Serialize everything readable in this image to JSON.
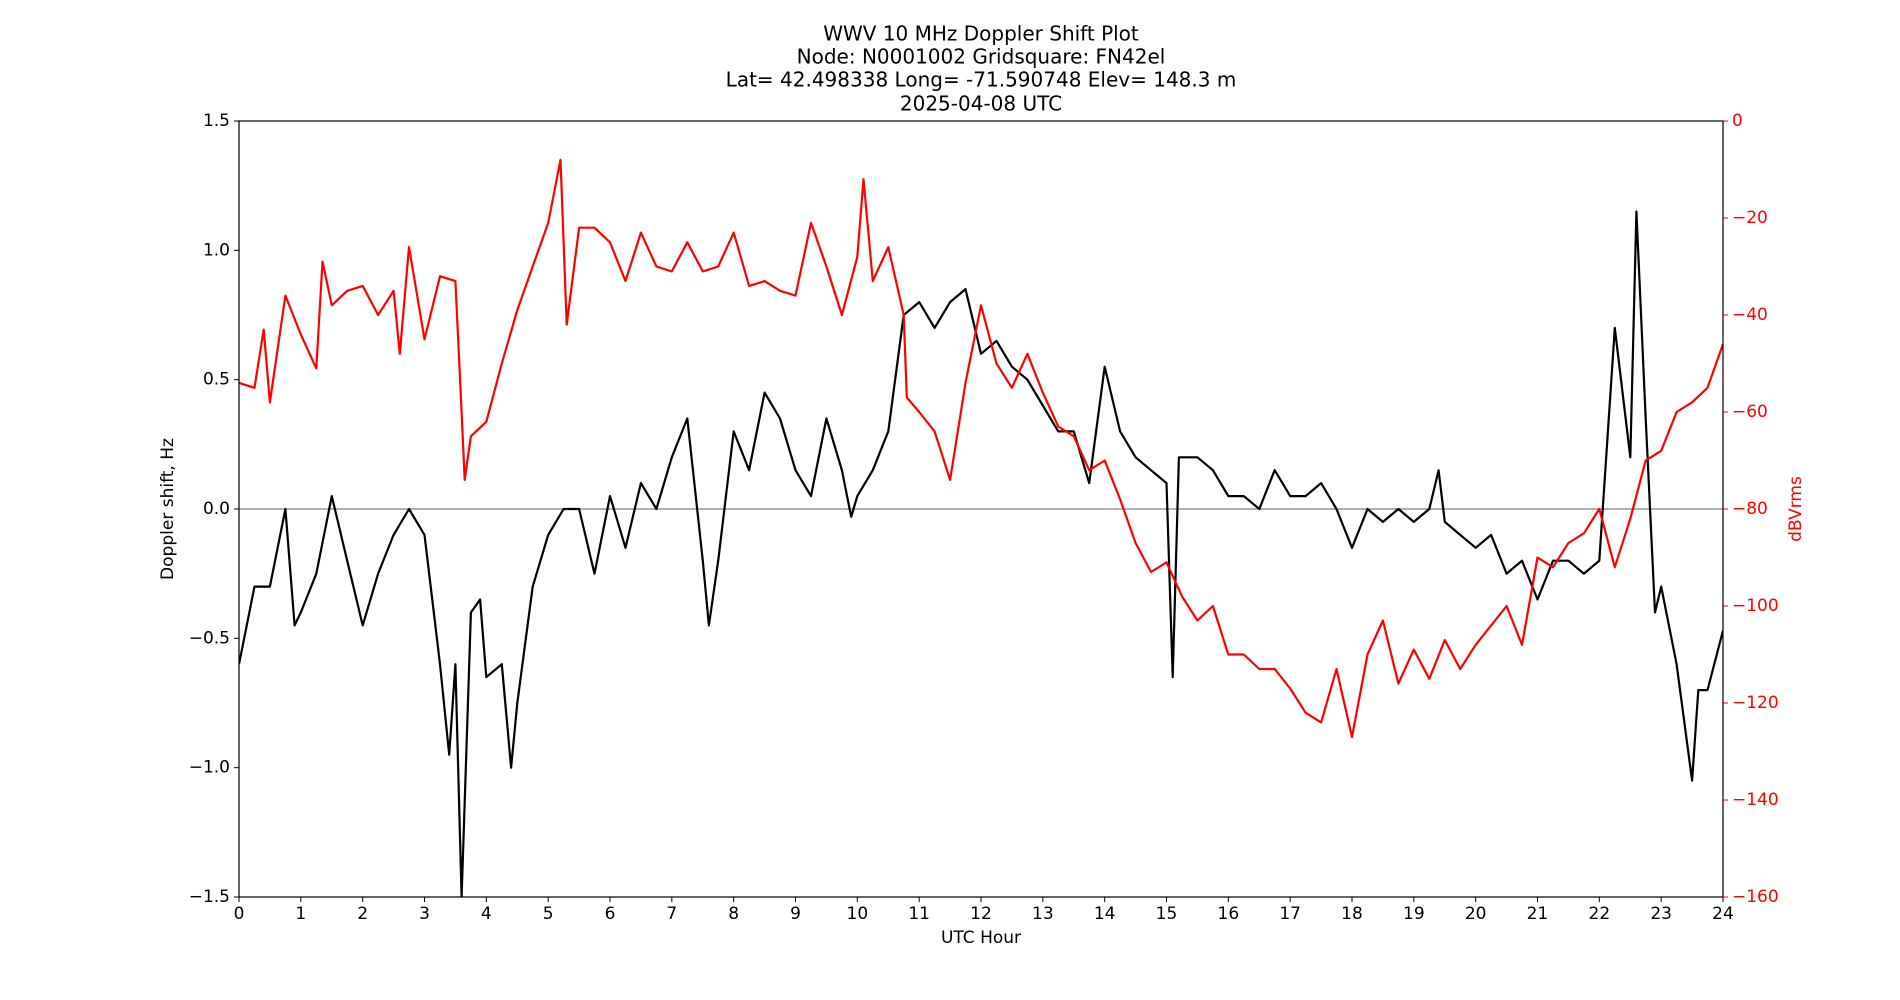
{
  "chart_data": {
    "type": "line",
    "title": [
      "WWV 10 MHz Doppler Shift Plot",
      "Node:  N0001002     Gridsquare:  FN42el",
      "Lat= 42.498338    Long= -71.590748    Elev= 148.3 m",
      "2025-04-08  UTC"
    ],
    "x_label": "UTC Hour",
    "y_label": "Doppler shift, Hz",
    "y2_label": "dBVrms",
    "xlim": [
      0,
      24
    ],
    "xticks": [
      0,
      1,
      2,
      3,
      4,
      5,
      6,
      7,
      8,
      9,
      10,
      11,
      12,
      13,
      14,
      15,
      16,
      17,
      18,
      19,
      20,
      21,
      22,
      23,
      24
    ],
    "ylim": [
      -1.5,
      1.5
    ],
    "yticks": [
      {
        "value": -1.5,
        "label": "−1.5"
      },
      {
        "value": -1.0,
        "label": "−1.0"
      },
      {
        "value": -0.5,
        "label": "−0.5"
      },
      {
        "value": 0.0,
        "label": "0.0"
      },
      {
        "value": 0.5,
        "label": "0.5"
      },
      {
        "value": 1.0,
        "label": "1.0"
      },
      {
        "value": 1.5,
        "label": "1.5"
      }
    ],
    "y2lim": [
      -160,
      0
    ],
    "y2ticks": [
      {
        "value": -160,
        "label": "−160"
      },
      {
        "value": -140,
        "label": "−140"
      },
      {
        "value": -120,
        "label": "−120"
      },
      {
        "value": -100,
        "label": "−100"
      },
      {
        "value": -80,
        "label": "−80"
      },
      {
        "value": -60,
        "label": "−60"
      },
      {
        "value": -40,
        "label": "−40"
      },
      {
        "value": -20,
        "label": "−20"
      },
      0
    ],
    "y2_color": "#ff0000",
    "reference_line": 0,
    "reference_color": "#808080",
    "series": [
      {
        "name": "Doppler shift",
        "color": "#000000",
        "axis": "y",
        "x": [
          0,
          0.25,
          0.5,
          0.75,
          0.9,
          1.0,
          1.25,
          1.5,
          1.75,
          2.0,
          2.25,
          2.5,
          2.75,
          3.0,
          3.25,
          3.4,
          3.5,
          3.6,
          3.75,
          3.9,
          4.0,
          4.25,
          4.4,
          4.5,
          4.75,
          5.0,
          5.25,
          5.5,
          5.75,
          6.0,
          6.25,
          6.5,
          6.75,
          7.0,
          7.25,
          7.5,
          7.6,
          7.75,
          8.0,
          8.25,
          8.5,
          8.75,
          9.0,
          9.25,
          9.5,
          9.75,
          9.9,
          10.0,
          10.25,
          10.5,
          10.75,
          11.0,
          11.25,
          11.5,
          11.75,
          12.0,
          12.25,
          12.5,
          12.75,
          13.0,
          13.25,
          13.5,
          13.75,
          14.0,
          14.25,
          14.5,
          14.75,
          15.0,
          15.1,
          15.2,
          15.5,
          15.75,
          16.0,
          16.25,
          16.5,
          16.75,
          17.0,
          17.25,
          17.5,
          17.75,
          18.0,
          18.25,
          18.5,
          18.75,
          19.0,
          19.25,
          19.4,
          19.5,
          19.75,
          20.0,
          20.25,
          20.5,
          20.75,
          21.0,
          21.25,
          21.5,
          21.75,
          22.0,
          22.25,
          22.5,
          22.6,
          22.75,
          22.9,
          23.0,
          23.25,
          23.5,
          23.6,
          23.75,
          24.0
        ],
        "values": [
          -0.6,
          -0.3,
          -0.3,
          0.0,
          -0.45,
          -0.4,
          -0.25,
          0.05,
          -0.2,
          -0.45,
          -0.25,
          -0.1,
          0.0,
          -0.1,
          -0.6,
          -0.95,
          -0.6,
          -1.5,
          -0.4,
          -0.35,
          -0.65,
          -0.6,
          -1.0,
          -0.75,
          -0.3,
          -0.1,
          0.0,
          0.0,
          -0.25,
          0.05,
          -0.15,
          0.1,
          0.0,
          0.2,
          0.35,
          -0.2,
          -0.45,
          -0.2,
          0.3,
          0.15,
          0.45,
          0.35,
          0.15,
          0.05,
          0.35,
          0.15,
          -0.03,
          0.05,
          0.15,
          0.3,
          0.75,
          0.8,
          0.7,
          0.8,
          0.85,
          0.6,
          0.65,
          0.55,
          0.5,
          0.4,
          0.3,
          0.3,
          0.1,
          0.55,
          0.3,
          0.2,
          0.15,
          0.1,
          -0.65,
          0.2,
          0.2,
          0.15,
          0.05,
          0.05,
          0.0,
          0.15,
          0.05,
          0.05,
          0.1,
          0.0,
          -0.15,
          0.0,
          -0.05,
          0.0,
          -0.05,
          0.0,
          0.15,
          -0.05,
          -0.1,
          -0.15,
          -0.1,
          -0.25,
          -0.2,
          -0.35,
          -0.2,
          -0.2,
          -0.25,
          -0.2,
          0.7,
          0.2,
          1.15,
          0.35,
          -0.4,
          -0.3,
          -0.6,
          -1.05,
          -0.7,
          -0.7,
          -0.47
        ]
      },
      {
        "name": "dBVrms",
        "color": "#ff0000",
        "axis": "y2",
        "x": [
          0,
          0.25,
          0.4,
          0.5,
          0.75,
          1.0,
          1.25,
          1.35,
          1.5,
          1.75,
          2.0,
          2.25,
          2.5,
          2.6,
          2.75,
          3.0,
          3.25,
          3.5,
          3.6,
          3.65,
          3.75,
          4.0,
          4.25,
          4.5,
          4.75,
          5.0,
          5.2,
          5.3,
          5.5,
          5.75,
          6.0,
          6.25,
          6.5,
          6.75,
          7.0,
          7.25,
          7.5,
          7.75,
          8.0,
          8.25,
          8.5,
          8.75,
          9.0,
          9.25,
          9.5,
          9.75,
          10.0,
          10.1,
          10.25,
          10.5,
          10.75,
          10.8,
          11.0,
          11.25,
          11.5,
          11.75,
          12.0,
          12.25,
          12.5,
          12.75,
          13.0,
          13.25,
          13.5,
          13.75,
          14.0,
          14.25,
          14.5,
          14.75,
          15.0,
          15.25,
          15.5,
          15.75,
          16.0,
          16.25,
          16.5,
          16.75,
          17.0,
          17.25,
          17.5,
          17.75,
          18.0,
          18.25,
          18.5,
          18.75,
          19.0,
          19.25,
          19.5,
          19.75,
          20.0,
          20.25,
          20.5,
          20.75,
          21.0,
          21.25,
          21.5,
          21.75,
          22.0,
          22.25,
          22.5,
          22.75,
          23.0,
          23.25,
          23.5,
          23.75,
          24.0
        ],
        "values": [
          -54,
          -55,
          -43,
          -58,
          -36,
          -44,
          -51,
          -29,
          -38,
          -35,
          -34,
          -40,
          -35,
          -48,
          -26,
          -45,
          -32,
          -33,
          -60,
          -74,
          -65,
          -62,
          -50,
          -39,
          -30,
          -21,
          -8,
          -42,
          -22,
          -22,
          -25,
          -33,
          -23,
          -30,
          -31,
          -25,
          -31,
          -30,
          -23,
          -34,
          -33,
          -35,
          -36,
          -21,
          -30,
          -40,
          -28,
          -12,
          -33,
          -26,
          -40,
          -57,
          -60,
          -64,
          -74,
          -54,
          -38,
          -50,
          -55,
          -48,
          -56,
          -63,
          -65,
          -72,
          -70,
          -78,
          -87,
          -93,
          -91,
          -98,
          -103,
          -100,
          -110,
          -110,
          -113,
          -113,
          -117,
          -122,
          -124,
          -113,
          -127,
          -110,
          -103,
          -116,
          -109,
          -115,
          -107,
          -113,
          -108,
          -104,
          -100,
          -108,
          -90,
          -92,
          -87,
          -85,
          -80,
          -92,
          -82,
          -70,
          -68,
          -60,
          -58,
          -55,
          -46
        ]
      }
    ]
  }
}
